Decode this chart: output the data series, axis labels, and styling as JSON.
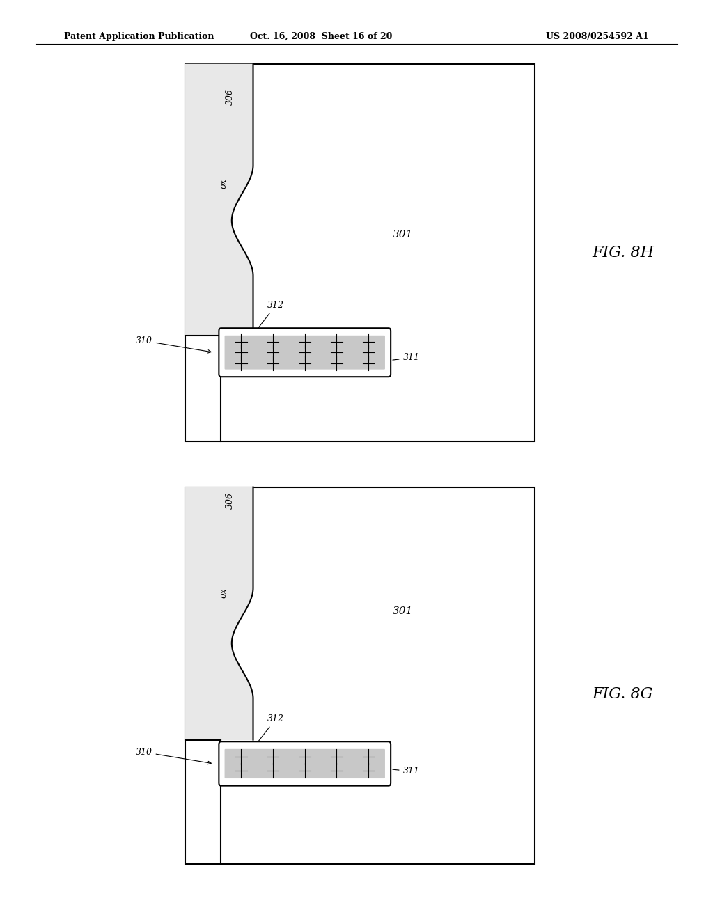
{
  "header_left": "Patent Application Publication",
  "header_mid": "Oct. 16, 2008  Sheet 16 of 20",
  "header_right": "US 2008/0254592 A1",
  "fig_top_label": "FIG. 8H",
  "fig_bot_label": "FIG. 8G",
  "bg_color": "#ffffff",
  "line_color": "#000000",
  "fill_color": "#d0d0d0"
}
